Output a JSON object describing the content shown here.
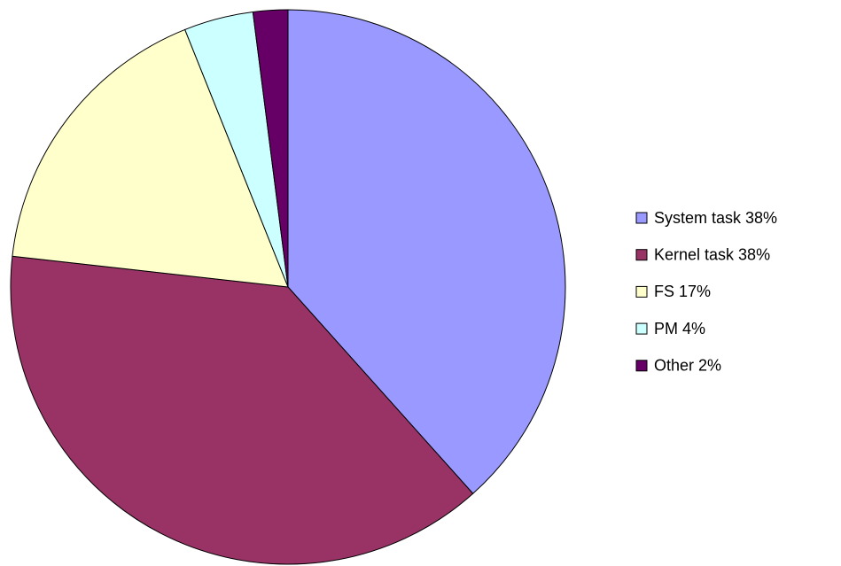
{
  "chart_data": {
    "type": "pie",
    "categories": [
      "System task 38%",
      "Kernel task 38%",
      "FS 17%",
      "PM 4%",
      "Other 2%"
    ],
    "values": [
      38,
      38,
      17,
      4,
      2
    ],
    "colors": [
      "#9999ff",
      "#993366",
      "#ffffcc",
      "#ccffff",
      "#660066"
    ],
    "legend": "right"
  }
}
